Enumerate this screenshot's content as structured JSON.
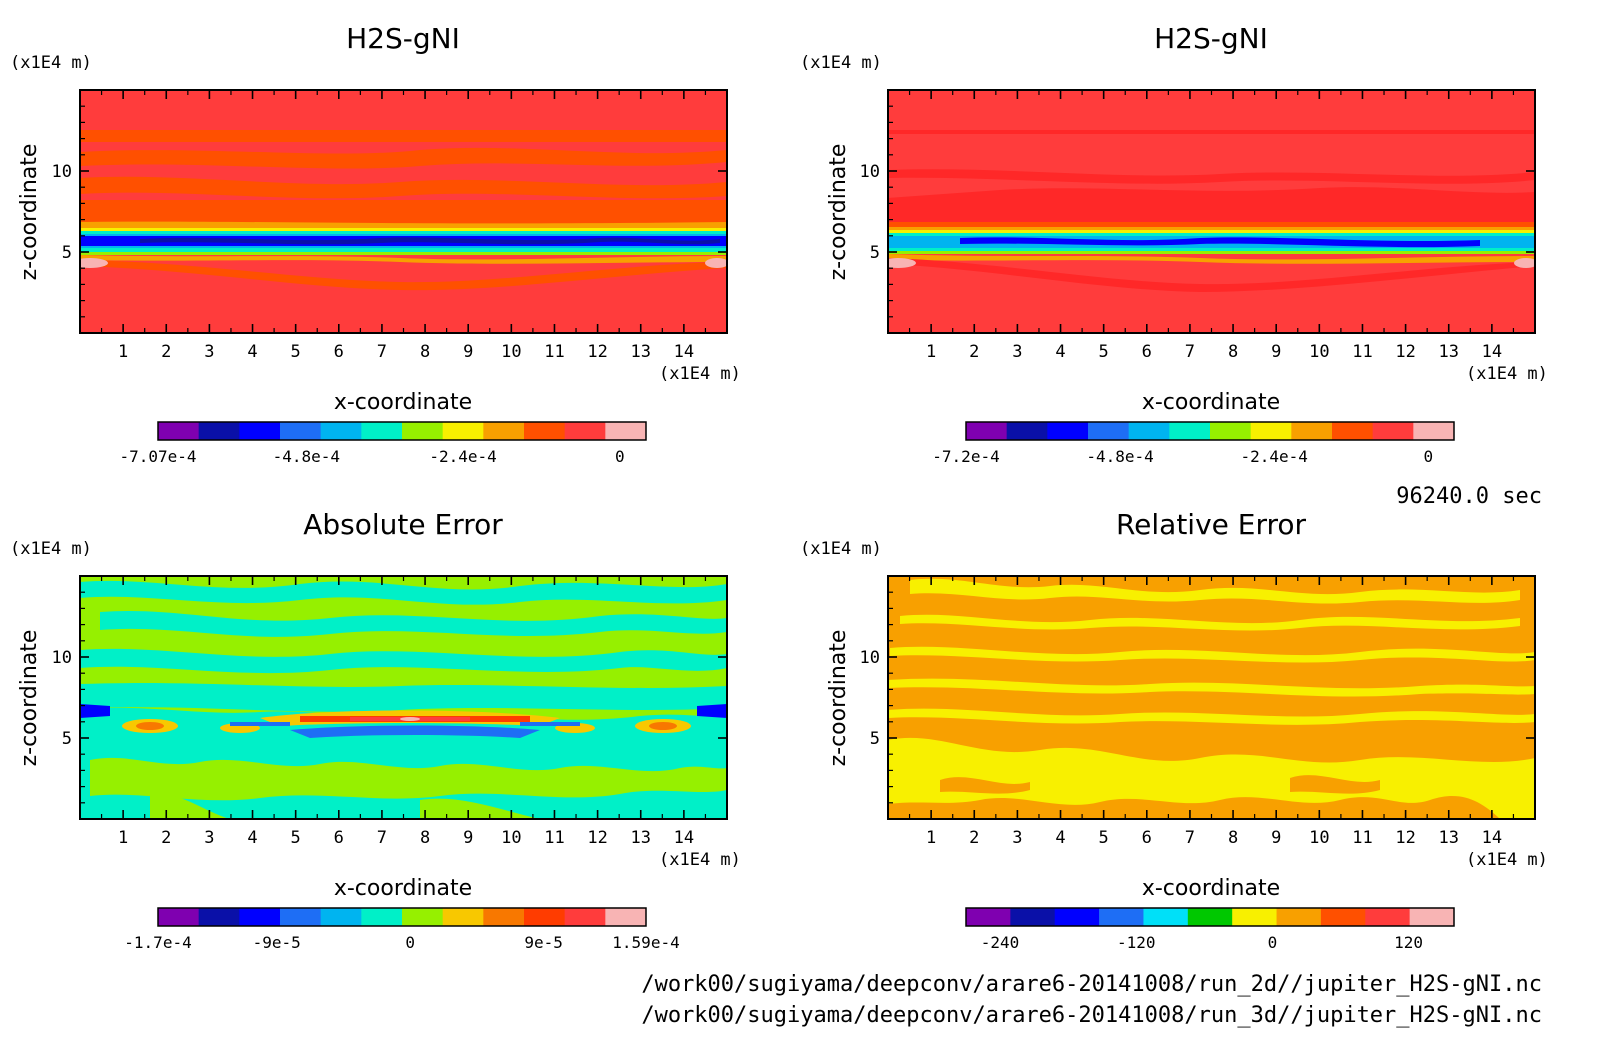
{
  "time_label": "96240.0 sec",
  "footer": {
    "path_2d": "/work00/sugiyama/deepconv/arare6-20141008/run_2d//jupiter_H2S-gNI.nc",
    "path_3d": "/work00/sugiyama/deepconv/arare6-20141008/run_3d//jupiter_H2S-gNI.nc"
  },
  "chart_data": [
    {
      "type": "heatmap",
      "title": "H2S-gNI",
      "xlabel": "x-coordinate",
      "ylabel": "z-coordinate",
      "x_unit": "(x1E4 m)",
      "y_unit": "(x1E4 m)",
      "xlim": [
        0,
        15
      ],
      "ylim": [
        0,
        15
      ],
      "x_ticks": [
        1,
        2,
        3,
        4,
        5,
        6,
        7,
        8,
        9,
        10,
        11,
        12,
        13,
        14
      ],
      "y_ticks": [
        5,
        10
      ],
      "colorbar": {
        "colors": [
          "#7f00b0",
          "#0a10a8",
          "#0000ff",
          "#1e6ef5",
          "#00b4f0",
          "#00f0c8",
          "#96f000",
          "#f8f000",
          "#f8a000",
          "#ff5000",
          "#ff3c3c",
          "#f8b4b4"
        ],
        "labels": [
          "-7.07e-4",
          "-4.8e-4",
          "-2.4e-4",
          "0"
        ],
        "label_positions": [
          -0.000707,
          -0.00048,
          -0.00024,
          0
        ],
        "range": [
          -0.000707,
          4e-05
        ]
      }
    },
    {
      "type": "heatmap",
      "title": "H2S-gNI",
      "xlabel": "x-coordinate",
      "ylabel": "z-coordinate",
      "x_unit": "(x1E4 m)",
      "y_unit": "(x1E4 m)",
      "xlim": [
        0,
        15
      ],
      "ylim": [
        0,
        15
      ],
      "x_ticks": [
        1,
        2,
        3,
        4,
        5,
        6,
        7,
        8,
        9,
        10,
        11,
        12,
        13,
        14
      ],
      "y_ticks": [
        5,
        10
      ],
      "colorbar": {
        "colors": [
          "#7f00b0",
          "#0a10a8",
          "#0000ff",
          "#1e6ef5",
          "#00b4f0",
          "#00f0c8",
          "#96f000",
          "#f8f000",
          "#f8a000",
          "#ff5000",
          "#ff3c3c",
          "#f8b4b4"
        ],
        "labels": [
          "-7.2e-4",
          "-4.8e-4",
          "-2.4e-4",
          "0"
        ],
        "label_positions": [
          -0.00072,
          -0.00048,
          -0.00024,
          0
        ],
        "range": [
          -0.00072,
          4e-05
        ]
      }
    },
    {
      "type": "heatmap",
      "title": "Absolute Error",
      "xlabel": "x-coordinate",
      "ylabel": "z-coordinate",
      "x_unit": "(x1E4 m)",
      "y_unit": "(x1E4 m)",
      "xlim": [
        0,
        15
      ],
      "ylim": [
        0,
        15
      ],
      "x_ticks": [
        1,
        2,
        3,
        4,
        5,
        6,
        7,
        8,
        9,
        10,
        11,
        12,
        13,
        14
      ],
      "y_ticks": [
        5,
        10
      ],
      "colorbar": {
        "colors": [
          "#7f00b0",
          "#0a10a8",
          "#0000ff",
          "#1e6ef5",
          "#00b4f0",
          "#00f0c8",
          "#96f000",
          "#f8c800",
          "#f87800",
          "#ff3c00",
          "#ff3c3c",
          "#f8b4b4"
        ],
        "labels": [
          "-1.7e-4",
          "-9e-5",
          "0",
          "9e-5",
          "1.59e-4"
        ],
        "label_positions": [
          -0.00017,
          -9e-05,
          0,
          9e-05,
          0.000159
        ],
        "range": [
          -0.00017,
          0.000159
        ]
      }
    },
    {
      "type": "heatmap",
      "title": "Relative Error",
      "xlabel": "x-coordinate",
      "ylabel": "z-coordinate",
      "x_unit": "(x1E4 m)",
      "y_unit": "(x1E4 m)",
      "xlim": [
        0,
        15
      ],
      "ylim": [
        0,
        15
      ],
      "x_ticks": [
        1,
        2,
        3,
        4,
        5,
        6,
        7,
        8,
        9,
        10,
        11,
        12,
        13,
        14
      ],
      "y_ticks": [
        5,
        10
      ],
      "colorbar": {
        "colors": [
          "#7f00b0",
          "#0a10a8",
          "#0000ff",
          "#1e6ef5",
          "#00e0f8",
          "#00c800",
          "#f8f000",
          "#f8a000",
          "#ff5000",
          "#ff3c3c",
          "#f8b4b4"
        ],
        "labels": [
          "-240",
          "-120",
          "0",
          "120"
        ],
        "label_positions": [
          -240,
          -120,
          0,
          120
        ],
        "range": [
          -270,
          160
        ]
      }
    }
  ]
}
